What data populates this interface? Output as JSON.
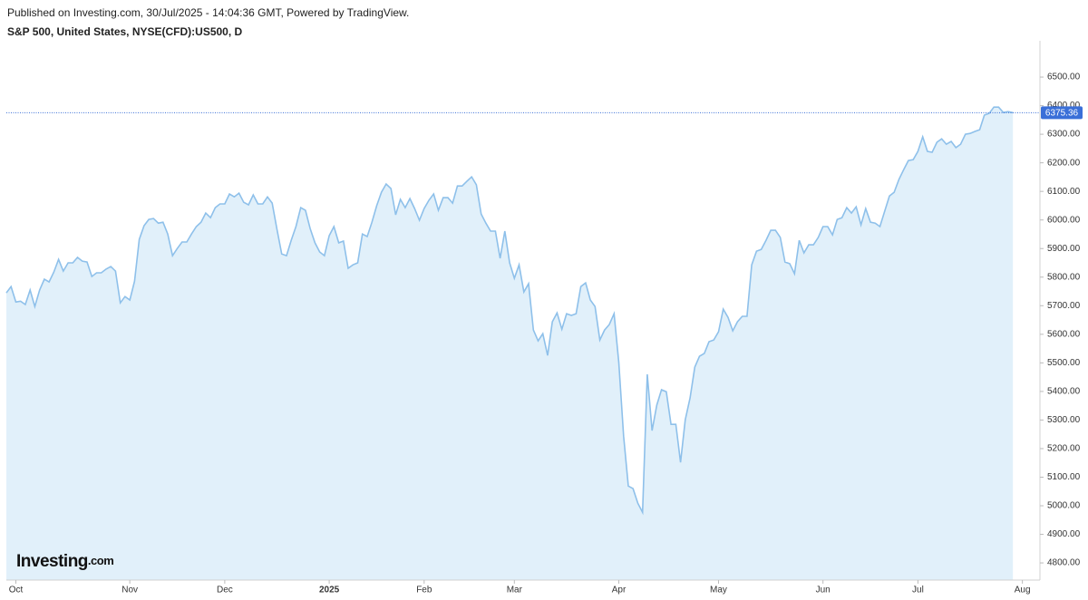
{
  "header": "Published on Investing.com, 30/Jul/2025 - 14:04:36 GMT, Powered by TradingView.",
  "logo": {
    "brand": "Investing",
    "suffix": ".com"
  },
  "chart_data": {
    "type": "area",
    "title": "S&P 500, United States, NYSE(CFD):US500, D",
    "series": [
      {
        "name": "S&P 500",
        "color": "#8ec0ea",
        "fill": "#e1f0fa",
        "values": [
          5745,
          5767,
          5713,
          5716,
          5704,
          5755,
          5697,
          5755,
          5793,
          5783,
          5818,
          5862,
          5821,
          5850,
          5850,
          5869,
          5856,
          5853,
          5802,
          5815,
          5815,
          5828,
          5837,
          5821,
          5710,
          5732,
          5720,
          5786,
          5932,
          5980,
          6002,
          6005,
          5989,
          5992,
          5951,
          5875,
          5900,
          5923,
          5923,
          5951,
          5977,
          5992,
          6024,
          6008,
          6043,
          6056,
          6056,
          6091,
          6081,
          6094,
          6062,
          6053,
          6088,
          6056,
          6056,
          6081,
          6059,
          5967,
          5881,
          5875,
          5929,
          5977,
          6043,
          6034,
          5970,
          5920,
          5888,
          5875,
          5945,
          5977,
          5920,
          5926,
          5831,
          5843,
          5850,
          5951,
          5942,
          5992,
          6050,
          6097,
          6126,
          6110,
          6018,
          6072,
          6043,
          6075,
          6040,
          5999,
          6040,
          6069,
          6091,
          6034,
          6078,
          6078,
          6059,
          6119,
          6119,
          6135,
          6151,
          6123,
          6021,
          5989,
          5961,
          5961,
          5866,
          5961,
          5850,
          5796,
          5843,
          5748,
          5777,
          5615,
          5577,
          5602,
          5526,
          5644,
          5675,
          5618,
          5672,
          5666,
          5672,
          5767,
          5780,
          5720,
          5697,
          5580,
          5615,
          5634,
          5672,
          5501,
          5244,
          5069,
          5060,
          5009,
          4977,
          5460,
          5263,
          5352,
          5406,
          5399,
          5285,
          5285,
          5152,
          5301,
          5377,
          5485,
          5523,
          5533,
          5574,
          5580,
          5609,
          5688,
          5659,
          5612,
          5644,
          5663,
          5663,
          5843,
          5891,
          5897,
          5929,
          5964,
          5964,
          5939,
          5853,
          5847,
          5812,
          5929,
          5885,
          5913,
          5913,
          5939,
          5977,
          5977,
          5948,
          6002,
          6008,
          6043,
          6024,
          6046,
          5983,
          6040,
          5992,
          5989,
          5977,
          6031,
          6084,
          6097,
          6142,
          6176,
          6208,
          6211,
          6240,
          6291,
          6240,
          6237,
          6272,
          6284,
          6265,
          6275,
          6253,
          6265,
          6300,
          6303,
          6310,
          6316,
          6367,
          6373,
          6395,
          6395,
          6376,
          6379,
          6375.36
        ]
      }
    ],
    "current_price": 6375.36,
    "price_color": "#3a6fd8",
    "xlim": [
      0,
      217.7
    ],
    "xticks": [
      {
        "value": 2,
        "label": "Oct"
      },
      {
        "value": 26,
        "label": "Nov"
      },
      {
        "value": 46,
        "label": "Dec"
      },
      {
        "value": 68,
        "label": "2025"
      },
      {
        "value": 88,
        "label": "Feb"
      },
      {
        "value": 107,
        "label": "Mar"
      },
      {
        "value": 129,
        "label": "Apr"
      },
      {
        "value": 150,
        "label": "May"
      },
      {
        "value": 172,
        "label": "Jun"
      },
      {
        "value": 192,
        "label": "Jul"
      },
      {
        "value": 214,
        "label": "Aug"
      }
    ],
    "ylim": [
      4740,
      6627
    ],
    "yticks": [
      {
        "value": 4800,
        "label": "4800.00"
      },
      {
        "value": 4900,
        "label": "4900.00"
      },
      {
        "value": 5000,
        "label": "5000.00"
      },
      {
        "value": 5100,
        "label": "5100.00"
      },
      {
        "value": 5200,
        "label": "5200.00"
      },
      {
        "value": 5300,
        "label": "5300.00"
      },
      {
        "value": 5400,
        "label": "5400.00"
      },
      {
        "value": 5500,
        "label": "5500.00"
      },
      {
        "value": 5600,
        "label": "5600.00"
      },
      {
        "value": 5700,
        "label": "5700.00"
      },
      {
        "value": 5800,
        "label": "5800.00"
      },
      {
        "value": 5900,
        "label": "5900.00"
      },
      {
        "value": 6000,
        "label": "6000.00"
      },
      {
        "value": 6100,
        "label": "6100.00"
      },
      {
        "value": 6200,
        "label": "6200.00"
      },
      {
        "value": 6300,
        "label": "6300.00"
      },
      {
        "value": 6400,
        "label": "6400.00"
      },
      {
        "value": 6500,
        "label": "6500.00"
      }
    ]
  }
}
